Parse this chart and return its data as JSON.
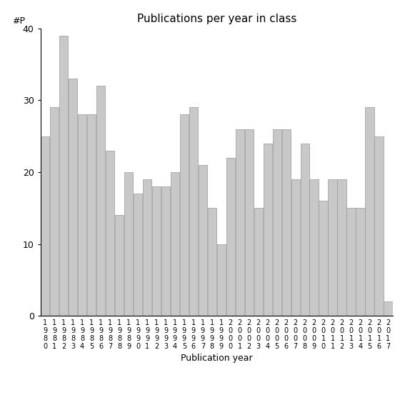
{
  "title": "Publications per year in class",
  "xlabel": "Publication year",
  "ylabel_text": "#P",
  "bar_color": "#c8c8c8",
  "edge_color": "#999999",
  "background_color": "#ffffff",
  "ylim": [
    0,
    40
  ],
  "yticks": [
    0,
    10,
    20,
    30,
    40
  ],
  "categories": [
    "1980",
    "1981",
    "1982",
    "1983",
    "1984",
    "1985",
    "1986",
    "1987",
    "1988",
    "1989",
    "1990",
    "1991",
    "1992",
    "1993",
    "1994",
    "1995",
    "1996",
    "1997",
    "1998",
    "1999",
    "2000",
    "2001",
    "2002",
    "2003",
    "2004",
    "2005",
    "2006",
    "2007",
    "2008",
    "2009",
    "2010",
    "2011",
    "2012",
    "2013",
    "2014",
    "2015",
    "2016",
    "2017"
  ],
  "values": [
    25,
    29,
    39,
    33,
    28,
    28,
    32,
    23,
    14,
    20,
    17,
    19,
    18,
    18,
    20,
    28,
    29,
    21,
    15,
    10,
    22,
    26,
    26,
    15,
    24,
    26,
    26,
    19,
    24,
    19,
    16,
    19,
    19,
    15,
    15,
    29,
    25,
    2
  ]
}
